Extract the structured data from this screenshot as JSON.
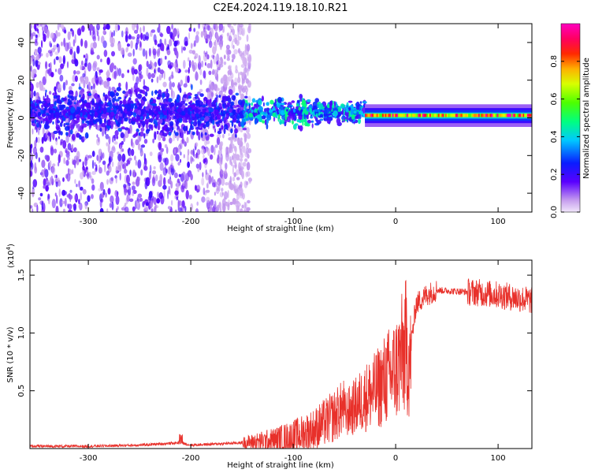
{
  "title": "C2E4.2024.119.18.10.R21",
  "top_panel": {
    "ylabel": "Frequency (Hz)",
    "xlabel": "Height of straight line (km)",
    "colorbar_label": "Normalized spectral amplitude",
    "colorbar_ticks": [
      "0.0",
      "0.2",
      "0.4",
      "0.6",
      "0.8"
    ]
  },
  "bottom_panel": {
    "ylabel": "SNR (10 * v/v)",
    "xlabel": "Height of straight line (km)",
    "scale_note": "(x10",
    "scale_exp": "4",
    "scale_close": ")",
    "line_color": "#e8302a"
  },
  "chart_data": [
    {
      "type": "heatmap",
      "xlabel": "Height of straight line (km)",
      "ylabel": "Frequency (Hz)",
      "xlim": [
        -357,
        133
      ],
      "ylim": [
        -50,
        50
      ],
      "x_ticks": [
        -300,
        -200,
        -100,
        0,
        100
      ],
      "y_ticks": [
        -40,
        -20,
        0,
        20,
        40
      ],
      "colorscale": "rainbow (lavender-violet-blue-cyan-green-yellow-red-magenta)",
      "colorbar_range": [
        0,
        1
      ],
      "colorbar_ticks": [
        0.0,
        0.2,
        0.4,
        0.6,
        0.8
      ],
      "colorbar_label": "Normalized spectral amplitude",
      "features": "broad scatter of low amplitude (violet) at heights below -150 km across all frequencies; band near 0 Hz with blue/cyan/green from -150 to -30 km; narrow red/magenta line at ~0-2 Hz from -30 to 133 km"
    },
    {
      "type": "line",
      "xlabel": "Height of straight line (km)",
      "ylabel": "SNR (10 * v/v)",
      "xlim": [
        -357,
        133
      ],
      "ylim": [
        0,
        1.63
      ],
      "y_scale_factor": 10000,
      "x_ticks": [
        -300,
        -200,
        -100,
        0,
        100
      ],
      "y_ticks": [
        0.5,
        1.0,
        1.5
      ],
      "series": [
        {
          "color": "#e8302a",
          "x": [
            -357,
            -300,
            -250,
            -210,
            -200,
            -150,
            -120,
            -100,
            -80,
            -60,
            -40,
            -30,
            -20,
            -10,
            0,
            10,
            15,
            20,
            30,
            40,
            60,
            80,
            100,
            120,
            133
          ],
          "y": [
            0.02,
            0.02,
            0.03,
            0.05,
            0.03,
            0.05,
            0.07,
            0.1,
            0.16,
            0.28,
            0.45,
            0.55,
            0.62,
            0.75,
            0.85,
            1.1,
            0.9,
            1.25,
            1.33,
            1.37,
            1.36,
            1.35,
            1.33,
            1.3,
            1.28
          ]
        }
      ]
    }
  ]
}
